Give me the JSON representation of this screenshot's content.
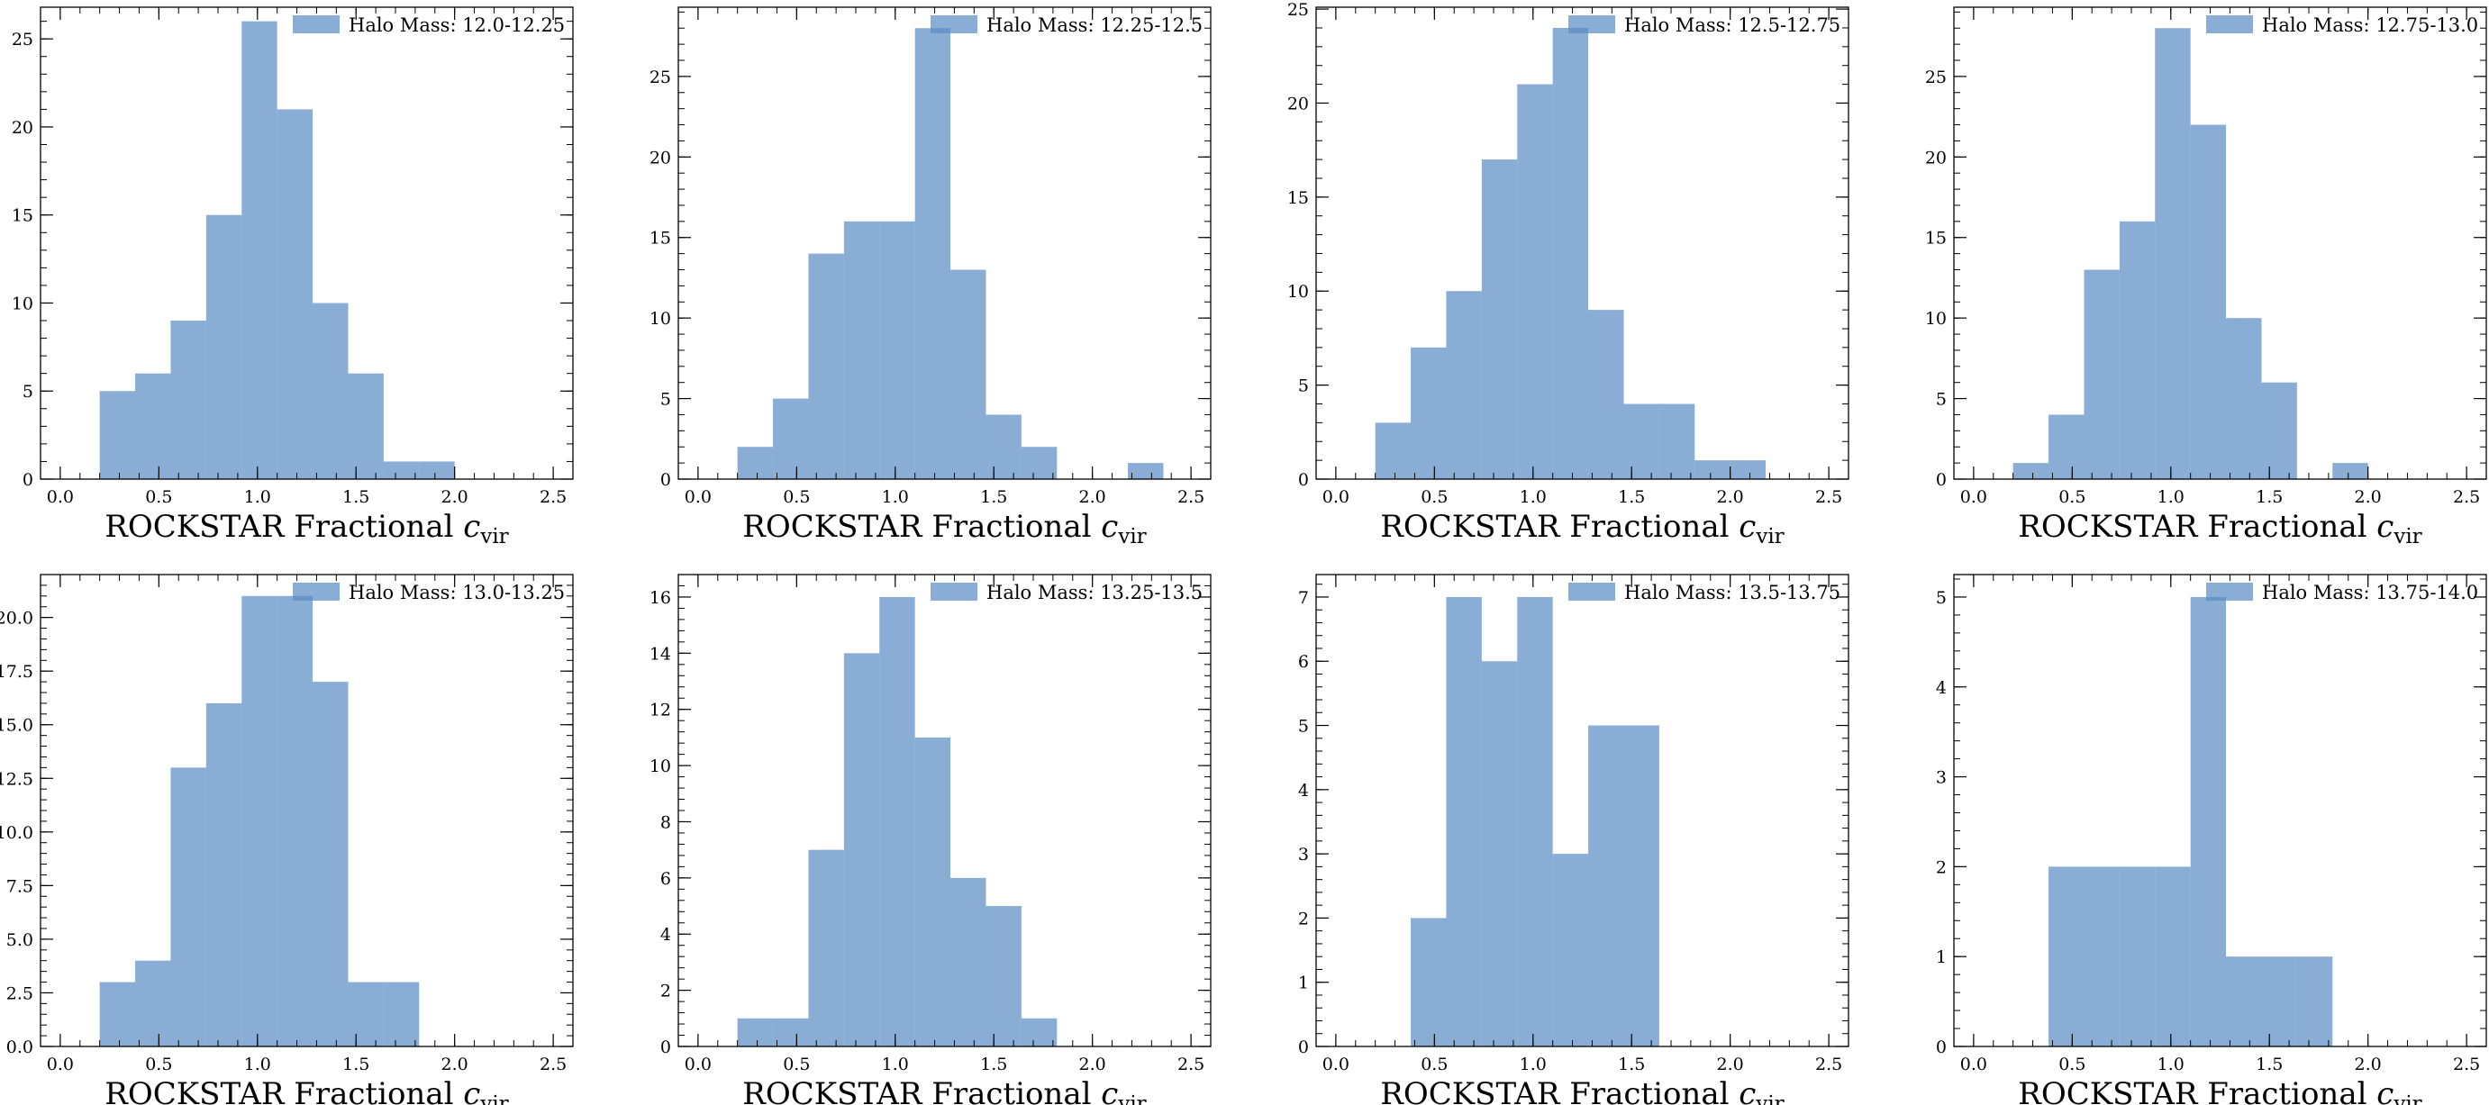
{
  "figure": {
    "bar_color": "#5b8ec4",
    "bar_opacity": 0.72,
    "axis_color": "#000000"
  },
  "chart_data": [
    {
      "type": "bar",
      "subplot": "row-1-col-1",
      "legend": "Halo Mass: 12.0-12.25",
      "legend_position": "top-right",
      "xlabel": "ROCKSTAR Fractional",
      "xlabel_symbol": "c",
      "xlabel_subscript": "vir",
      "xlim": [
        -0.1,
        2.6
      ],
      "ylim": [
        0,
        26.8
      ],
      "xticks": [
        0.0,
        0.5,
        1.0,
        1.5,
        2.0,
        2.5
      ],
      "xtick_labels": [
        "0.0",
        "0.5",
        "1.0",
        "1.5",
        "2.0",
        "2.5"
      ],
      "yticks": [
        0,
        5,
        10,
        15,
        20,
        25
      ],
      "ytick_labels": [
        "0",
        "5",
        "10",
        "15",
        "20",
        "25"
      ],
      "bin_edges": [
        0.2,
        0.38,
        0.56,
        0.74,
        0.92,
        1.1,
        1.28,
        1.46,
        1.64,
        1.82,
        2.0
      ],
      "values": [
        5,
        6,
        9,
        15,
        26,
        21,
        10,
        6,
        1,
        1
      ]
    },
    {
      "type": "bar",
      "subplot": "row-1-col-2",
      "legend": "Halo Mass: 12.25-12.5",
      "legend_position": "top-right",
      "xlabel": "ROCKSTAR Fractional",
      "xlabel_symbol": "c",
      "xlabel_subscript": "vir",
      "xlim": [
        -0.1,
        2.6
      ],
      "ylim": [
        0,
        29.3
      ],
      "xticks": [
        0.0,
        0.5,
        1.0,
        1.5,
        2.0,
        2.5
      ],
      "xtick_labels": [
        "0.0",
        "0.5",
        "1.0",
        "1.5",
        "2.0",
        "2.5"
      ],
      "yticks": [
        0,
        5,
        10,
        15,
        20,
        25
      ],
      "ytick_labels": [
        "0",
        "5",
        "10",
        "15",
        "20",
        "25"
      ],
      "bin_edges": [
        0.2,
        0.38,
        0.56,
        0.74,
        0.92,
        1.1,
        1.28,
        1.46,
        1.64,
        1.82,
        2.0,
        2.18,
        2.36
      ],
      "values": [
        2,
        5,
        14,
        16,
        16,
        28,
        13,
        4,
        2,
        0,
        0,
        1
      ]
    },
    {
      "type": "bar",
      "subplot": "row-1-col-3",
      "legend": "Halo Mass: 12.5-12.75",
      "legend_position": "top-right",
      "xlabel": "ROCKSTAR Fractional",
      "xlabel_symbol": "c",
      "xlabel_subscript": "vir",
      "xlim": [
        -0.1,
        2.6
      ],
      "ylim": [
        0,
        25.1
      ],
      "xticks": [
        0.0,
        0.5,
        1.0,
        1.5,
        2.0,
        2.5
      ],
      "xtick_labels": [
        "0.0",
        "0.5",
        "1.0",
        "1.5",
        "2.0",
        "2.5"
      ],
      "yticks": [
        0,
        5,
        10,
        15,
        20,
        25
      ],
      "ytick_labels": [
        "0",
        "5",
        "10",
        "15",
        "20",
        "25"
      ],
      "bin_edges": [
        0.2,
        0.38,
        0.56,
        0.74,
        0.92,
        1.1,
        1.28,
        1.46,
        1.64,
        1.82,
        2.0,
        2.18
      ],
      "values": [
        3,
        7,
        10,
        17,
        21,
        24,
        9,
        4,
        4,
        1,
        1
      ]
    },
    {
      "type": "bar",
      "subplot": "row-1-col-4",
      "legend": "Halo Mass: 12.75-13.0",
      "legend_position": "top-right",
      "xlabel": "ROCKSTAR Fractional",
      "xlabel_symbol": "c",
      "xlabel_subscript": "vir",
      "xlim": [
        -0.1,
        2.6
      ],
      "ylim": [
        0,
        29.3
      ],
      "xticks": [
        0.0,
        0.5,
        1.0,
        1.5,
        2.0,
        2.5
      ],
      "xtick_labels": [
        "0.0",
        "0.5",
        "1.0",
        "1.5",
        "2.0",
        "2.5"
      ],
      "yticks": [
        0,
        5,
        10,
        15,
        20,
        25
      ],
      "ytick_labels": [
        "0",
        "5",
        "10",
        "15",
        "20",
        "25"
      ],
      "bin_edges": [
        0.2,
        0.38,
        0.56,
        0.74,
        0.92,
        1.1,
        1.28,
        1.46,
        1.64,
        1.82,
        2.0
      ],
      "values": [
        1,
        4,
        13,
        16,
        28,
        22,
        10,
        6,
        0,
        1
      ]
    },
    {
      "type": "bar",
      "subplot": "row-2-col-1",
      "legend": "Halo Mass: 13.0-13.25",
      "legend_position": "top-right",
      "xlabel": "ROCKSTAR Fractional",
      "xlabel_symbol": "c",
      "xlabel_subscript": "vir",
      "xlim": [
        -0.1,
        2.6
      ],
      "ylim": [
        0,
        22.0
      ],
      "xticks": [
        0.0,
        0.5,
        1.0,
        1.5,
        2.0,
        2.5
      ],
      "xtick_labels": [
        "0.0",
        "0.5",
        "1.0",
        "1.5",
        "2.0",
        "2.5"
      ],
      "yticks": [
        0,
        2.5,
        5,
        7.5,
        10,
        12.5,
        15,
        17.5,
        20
      ],
      "ytick_labels": [
        "0.0",
        "2.5",
        "5.0",
        "7.5",
        "10.0",
        "12.5",
        "15.0",
        "17.5",
        "20.0"
      ],
      "bin_edges": [
        0.2,
        0.38,
        0.56,
        0.74,
        0.92,
        1.1,
        1.28,
        1.46,
        1.64,
        1.82
      ],
      "values": [
        3,
        4,
        13,
        16,
        21,
        21,
        17,
        3,
        3
      ]
    },
    {
      "type": "bar",
      "subplot": "row-2-col-2",
      "legend": "Halo Mass: 13.25-13.5",
      "legend_position": "top-right",
      "xlabel": "ROCKSTAR Fractional",
      "xlabel_symbol": "c",
      "xlabel_subscript": "vir",
      "xlim": [
        -0.1,
        2.6
      ],
      "ylim": [
        0,
        16.8
      ],
      "xticks": [
        0.0,
        0.5,
        1.0,
        1.5,
        2.0,
        2.5
      ],
      "xtick_labels": [
        "0.0",
        "0.5",
        "1.0",
        "1.5",
        "2.0",
        "2.5"
      ],
      "yticks": [
        0,
        2,
        4,
        6,
        8,
        10,
        12,
        14,
        16
      ],
      "ytick_labels": [
        "0",
        "2",
        "4",
        "6",
        "8",
        "10",
        "12",
        "14",
        "16"
      ],
      "bin_edges": [
        0.2,
        0.38,
        0.56,
        0.74,
        0.92,
        1.1,
        1.28,
        1.46,
        1.64,
        1.82
      ],
      "values": [
        1,
        1,
        7,
        14,
        16,
        11,
        6,
        5,
        1
      ]
    },
    {
      "type": "bar",
      "subplot": "row-2-col-3",
      "legend": "Halo Mass: 13.5-13.75",
      "legend_position": "top-right",
      "xlabel": "ROCKSTAR Fractional",
      "xlabel_symbol": "c",
      "xlabel_subscript": "vir",
      "xlim": [
        -0.1,
        2.6
      ],
      "ylim": [
        0,
        7.35
      ],
      "xticks": [
        0.0,
        0.5,
        1.0,
        1.5,
        2.0,
        2.5
      ],
      "xtick_labels": [
        "0.0",
        "0.5",
        "1.0",
        "1.5",
        "2.0",
        "2.5"
      ],
      "yticks": [
        0,
        1,
        2,
        3,
        4,
        5,
        6,
        7
      ],
      "ytick_labels": [
        "0",
        "1",
        "2",
        "3",
        "4",
        "5",
        "6",
        "7"
      ],
      "bin_edges": [
        0.38,
        0.56,
        0.74,
        0.92,
        1.1,
        1.28,
        1.46,
        1.64
      ],
      "values": [
        2,
        7,
        6,
        7,
        3,
        5,
        5
      ]
    },
    {
      "type": "bar",
      "subplot": "row-2-col-4",
      "legend": "Halo Mass: 13.75-14.0",
      "legend_position": "top-right",
      "xlabel": "ROCKSTAR Fractional",
      "xlabel_symbol": "c",
      "xlabel_subscript": "vir",
      "xlim": [
        -0.1,
        2.6
      ],
      "ylim": [
        0,
        5.25
      ],
      "xticks": [
        0.0,
        0.5,
        1.0,
        1.5,
        2.0,
        2.5
      ],
      "xtick_labels": [
        "0.0",
        "0.5",
        "1.0",
        "1.5",
        "2.0",
        "2.5"
      ],
      "yticks": [
        0,
        1,
        2,
        3,
        4,
        5
      ],
      "ytick_labels": [
        "0",
        "1",
        "2",
        "3",
        "4",
        "5"
      ],
      "bin_edges": [
        0.38,
        0.56,
        0.74,
        0.92,
        1.1,
        1.28,
        1.46,
        1.64,
        1.82
      ],
      "values": [
        2,
        2,
        2,
        2,
        5,
        1,
        1,
        1
      ]
    }
  ]
}
